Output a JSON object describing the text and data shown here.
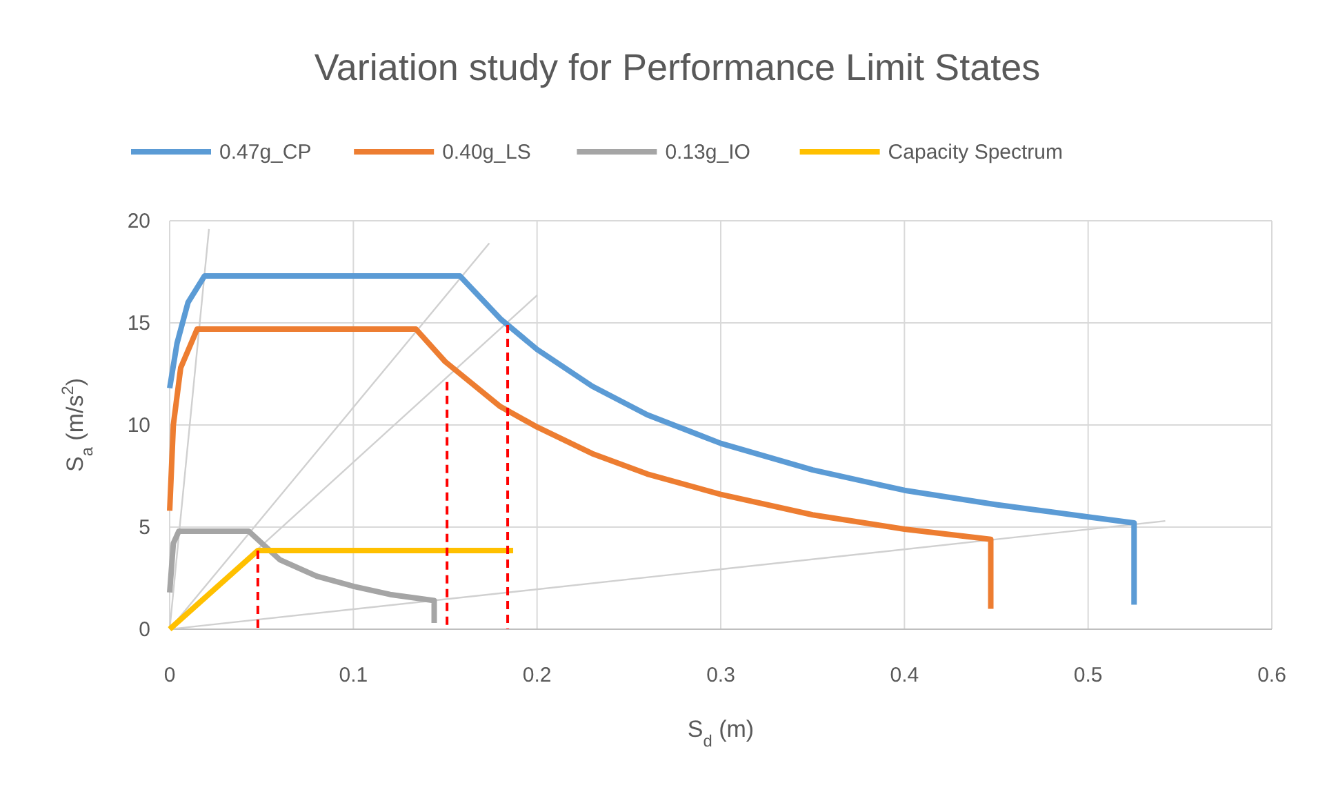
{
  "chart_data": {
    "type": "line",
    "title": "Variation study for Performance Limit States",
    "xlabel": "S$_{d}$ (m)",
    "ylabel": "S$_{a}$ (m/s$^{2}$)",
    "xlim": [
      0,
      0.6
    ],
    "xticks": [
      0,
      0.1,
      0.2,
      0.3,
      0.4,
      0.5,
      0.6
    ],
    "ylim": [
      0,
      20
    ],
    "yticks": [
      0,
      5,
      10,
      15,
      20
    ],
    "grid": true,
    "legend": "top",
    "marker": "none",
    "series": [
      {
        "color": "#d0d0d0",
        "x": [
          0,
          0.0214
        ],
        "values": [
          0,
          19.6
        ]
      },
      {
        "color": "#d0d0d0",
        "x": [
          0,
          0.174
        ],
        "values": [
          0,
          18.9
        ]
      },
      {
        "color": "#d0d0d0",
        "x": [
          0,
          0.2
        ],
        "values": [
          0,
          16.35
        ]
      },
      {
        "color": "#d0d0d0",
        "x": [
          0,
          0.542
        ],
        "values": [
          0,
          5.3
        ]
      },
      {
        "name": "0.47g_CP",
        "color": "#5b9bd5",
        "x": [
          0,
          0.004,
          0.01,
          0.019,
          0.158,
          0.18,
          0.2,
          0.23,
          0.26,
          0.3,
          0.35,
          0.4,
          0.45,
          0.5,
          0.525,
          0.525
        ],
        "values": [
          11.8,
          14,
          16,
          17.3,
          17.3,
          15.2,
          13.7,
          11.9,
          10.5,
          9.1,
          7.8,
          6.8,
          6.1,
          5.5,
          5.2,
          1.2
        ]
      },
      {
        "name": "0.40g_LS",
        "color": "#ed7d31",
        "x": [
          0,
          0.002,
          0.006,
          0.015,
          0.134,
          0.15,
          0.18,
          0.2,
          0.23,
          0.26,
          0.3,
          0.35,
          0.4,
          0.447,
          0.447
        ],
        "values": [
          5.8,
          10,
          12.8,
          14.7,
          14.7,
          13.1,
          10.9,
          9.9,
          8.6,
          7.6,
          6.6,
          5.6,
          4.9,
          4.4,
          1
        ]
      },
      {
        "name": "0.13g_IO",
        "color": "#a5a5a5",
        "x": [
          0,
          0.002,
          0.005,
          0.043,
          0.06,
          0.08,
          0.1,
          0.12,
          0.144,
          0.144
        ],
        "values": [
          1.8,
          4.2,
          4.8,
          4.8,
          3.4,
          2.6,
          2.1,
          1.7,
          1.4,
          0.3
        ]
      },
      {
        "name": "Capacity Spectrum",
        "color": "#ffc000",
        "x": [
          0,
          0.048,
          0.187
        ],
        "values": [
          0,
          3.85,
          3.85
        ]
      },
      {
        "color": "#ff0000",
        "line_style": "dashed",
        "x": [
          0.048,
          0.048
        ],
        "values": [
          3.85,
          0
        ]
      },
      {
        "color": "#ff0000",
        "line_style": "dashed",
        "x": [
          0.151,
          0.151
        ],
        "values": [
          12.1,
          0
        ]
      },
      {
        "color": "#ff0000",
        "line_style": "dashed",
        "x": [
          0.184,
          0.184
        ],
        "values": [
          14.9,
          0
        ]
      }
    ]
  }
}
